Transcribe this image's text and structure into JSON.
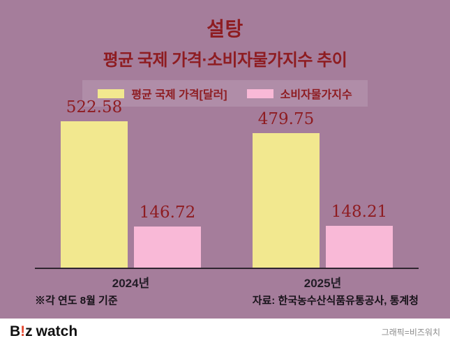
{
  "title": "설탕",
  "subtitle": "평균 국제 가격·소비자물가지수 추이",
  "legend": [
    {
      "label": "평균 국제 가격[달러]",
      "color": "#f2e88f"
    },
    {
      "label": "소비자물가지수",
      "color": "#f9b9d7"
    }
  ],
  "chart_data": {
    "type": "bar",
    "title": "설탕 평균 국제 가격·소비자물가지수 추이",
    "categories": [
      "2024년",
      "2025년"
    ],
    "series": [
      {
        "name": "평균 국제 가격[달러]",
        "color": "#f2e88f",
        "values": [
          522.58,
          479.75
        ]
      },
      {
        "name": "소비자물가지수",
        "color": "#f9b9d7",
        "values": [
          146.72,
          148.21
        ]
      }
    ],
    "ylim": [
      0,
      560
    ],
    "grid": false,
    "legend_position": "top",
    "value_labels_shown": true
  },
  "notes": {
    "left": "※각 연도 8월 기준",
    "right": "자료: 한국농수산식품유통공사, 통계청"
  },
  "footer": {
    "logo_prefix": "B",
    "logo_mark": "!",
    "logo_suffix": "z",
    "logo_word": "watch",
    "credit": "그래픽=비즈워치"
  },
  "colors": {
    "background": "#a57d9b",
    "title_text": "#8e1c21",
    "axis_line": "#2f2430",
    "footer_bg": "#ffffff",
    "logo_accent": "#e4452c"
  }
}
